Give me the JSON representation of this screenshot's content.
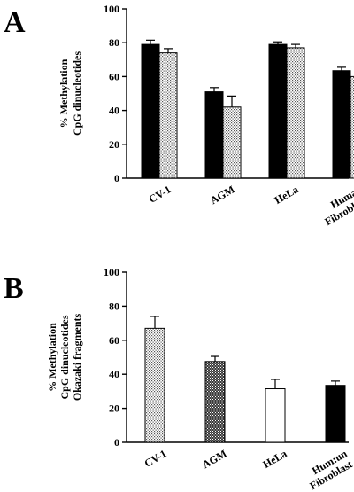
{
  "chart_data": [
    {
      "panel": "A",
      "type": "bar",
      "ylabel": [
        "% Methylation",
        "CpG dinucleotides"
      ],
      "ylim": [
        0,
        100
      ],
      "yticks": [
        0,
        20,
        40,
        60,
        80,
        100
      ],
      "categories": [
        [
          "CV-1"
        ],
        [
          "AGM"
        ],
        [
          "HeLa"
        ],
        [
          "Human",
          "Fibroblast"
        ]
      ],
      "series": [
        {
          "fill": "solid",
          "values": [
            79,
            51,
            79,
            63.5
          ],
          "errors": [
            2.5,
            2.5,
            1.5,
            2
          ]
        },
        {
          "fill": "dotted",
          "values": [
            74,
            42,
            77,
            60
          ],
          "errors": [
            2.5,
            6.5,
            2,
            2.5
          ]
        }
      ]
    },
    {
      "panel": "B",
      "type": "bar",
      "ylabel": [
        "% Methylation",
        "CpG dinucleotides",
        "Okazaki fragments"
      ],
      "ylim": [
        0,
        100
      ],
      "yticks": [
        0,
        20,
        40,
        60,
        80,
        100
      ],
      "categories": [
        [
          "CV-1"
        ],
        [
          "AGM"
        ],
        [
          "HeLa"
        ],
        [
          "Hum:un",
          "Fibroblast"
        ]
      ],
      "series": [
        {
          "values": [
            67,
            47.5,
            31.5,
            33.5
          ],
          "errors": [
            7,
            3,
            5.5,
            2.5
          ],
          "fills": [
            "dotted",
            "dense",
            "open",
            "solid"
          ]
        }
      ]
    }
  ]
}
